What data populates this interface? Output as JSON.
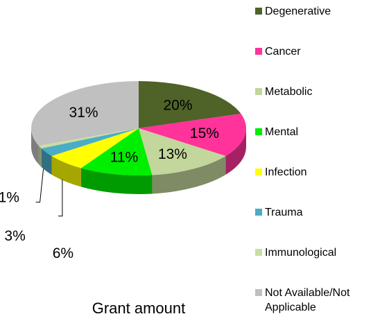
{
  "chart_data": {
    "type": "pie3d",
    "title": "Grant amount",
    "categories": [
      "Degenerative",
      "Cancer",
      "Metabolic",
      "Mental",
      "Infection",
      "Trauma",
      "Immunological",
      "Not Available/Not Applicable"
    ],
    "values": [
      20,
      15,
      13,
      11,
      6,
      3,
      1,
      31
    ],
    "value_labels": [
      "20%",
      "15%",
      "13%",
      "11%",
      "6%",
      "3%",
      "1%",
      "31%"
    ],
    "colors": [
      "#4f6228",
      "#ff3399",
      "#c3d69b",
      "#00ee00",
      "#ffff00",
      "#4bacc6",
      "#c9dea0",
      "#c0c0c0"
    ],
    "legend": "right"
  }
}
